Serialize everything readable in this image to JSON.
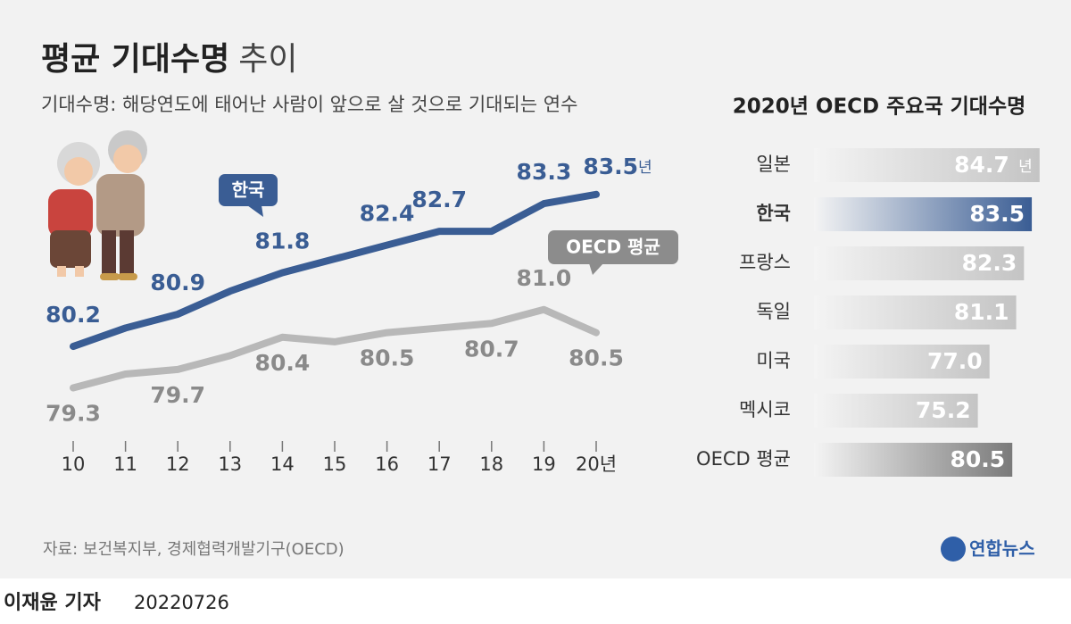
{
  "header": {
    "title": "평균 기대수명",
    "title_suffix": "추이",
    "subtitle": "기대수명: 해당연도에 태어난 사람이 앞으로 살 것으로 기대되는 연수"
  },
  "chart_data": [
    {
      "type": "line",
      "categories": [
        "10",
        "11",
        "12",
        "13",
        "14",
        "15",
        "16",
        "17",
        "18",
        "19",
        "20년"
      ],
      "ylim": [
        79,
        84
      ],
      "value_unit": "년",
      "series": [
        {
          "name": "한국",
          "color": "#3a5d94",
          "values": [
            80.2,
            80.6,
            80.9,
            81.4,
            81.8,
            82.1,
            82.4,
            82.7,
            82.7,
            83.3,
            83.5
          ],
          "value_labels": [
            "80.2",
            null,
            "80.9",
            null,
            "81.8",
            null,
            "82.4",
            "82.7",
            null,
            "83.3",
            "83.5"
          ]
        },
        {
          "name": "OECD 평균",
          "color": "#b8b8b8",
          "values": [
            79.3,
            79.6,
            79.7,
            80.0,
            80.4,
            80.3,
            80.5,
            80.6,
            80.7,
            81.0,
            80.5
          ],
          "value_labels": [
            "79.3",
            null,
            "79.7",
            null,
            "80.4",
            null,
            "80.5",
            null,
            "80.7",
            "81.0",
            "80.5"
          ]
        }
      ]
    },
    {
      "type": "barh",
      "title": "2020년 OECD 주요국 기대수명",
      "categories": [
        "일본",
        "한국",
        "프랑스",
        "독일",
        "미국",
        "멕시코",
        "OECD 평균"
      ],
      "values": [
        84.7,
        83.5,
        82.3,
        81.1,
        77.0,
        75.2,
        80.5
      ],
      "value_labels": [
        "84.7",
        "83.5",
        "82.3",
        "81.1",
        "77.0",
        "75.2",
        "80.5"
      ],
      "value_unit": "년",
      "colors": [
        "#c4c4c4",
        "#3a5d94",
        "#c4c4c4",
        "#c4c4c4",
        "#c4c4c4",
        "#c4c4c4",
        "#7a7a7a"
      ],
      "highlight_index": 1,
      "xlim": [
        50,
        85
      ]
    }
  ],
  "footer": {
    "source": "자료: 보건복지부, 경제협력개발기구(OECD)",
    "logo": "연합뉴스",
    "author": "이재윤 기자",
    "date": "20220726"
  }
}
